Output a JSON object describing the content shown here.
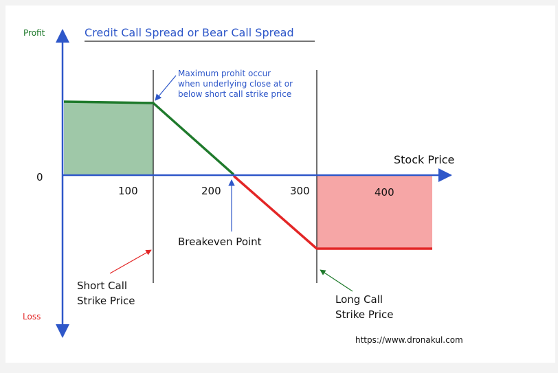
{
  "title": "Credit Call Spread or Bear Call Spread",
  "y_axis": {
    "top_label": "Profit",
    "bottom_label": "Loss",
    "zero_label": "0"
  },
  "x_axis": {
    "label": "Stock Price",
    "ticks": [
      "100",
      "200",
      "300",
      "400"
    ]
  },
  "annotations": {
    "max_profit": [
      "Maximum prohit occur",
      "when underlying close at or",
      "below short call strike price"
    ],
    "breakeven": "Breakeven Point",
    "short_call": [
      "Short Call",
      "Strike Price"
    ],
    "long_call": [
      "Long Call",
      "Strike Price"
    ]
  },
  "footer_url": "https://www.dronakul.com",
  "colors": {
    "axis": "#2e57c9",
    "profit": "#1f7a2c",
    "profit_fill": "#9fc8a8",
    "loss": "#e32626",
    "loss_fill": "#f6a6a6",
    "title": "#2e57c9",
    "annotation": "#2e57c9",
    "text": "#111111"
  }
}
